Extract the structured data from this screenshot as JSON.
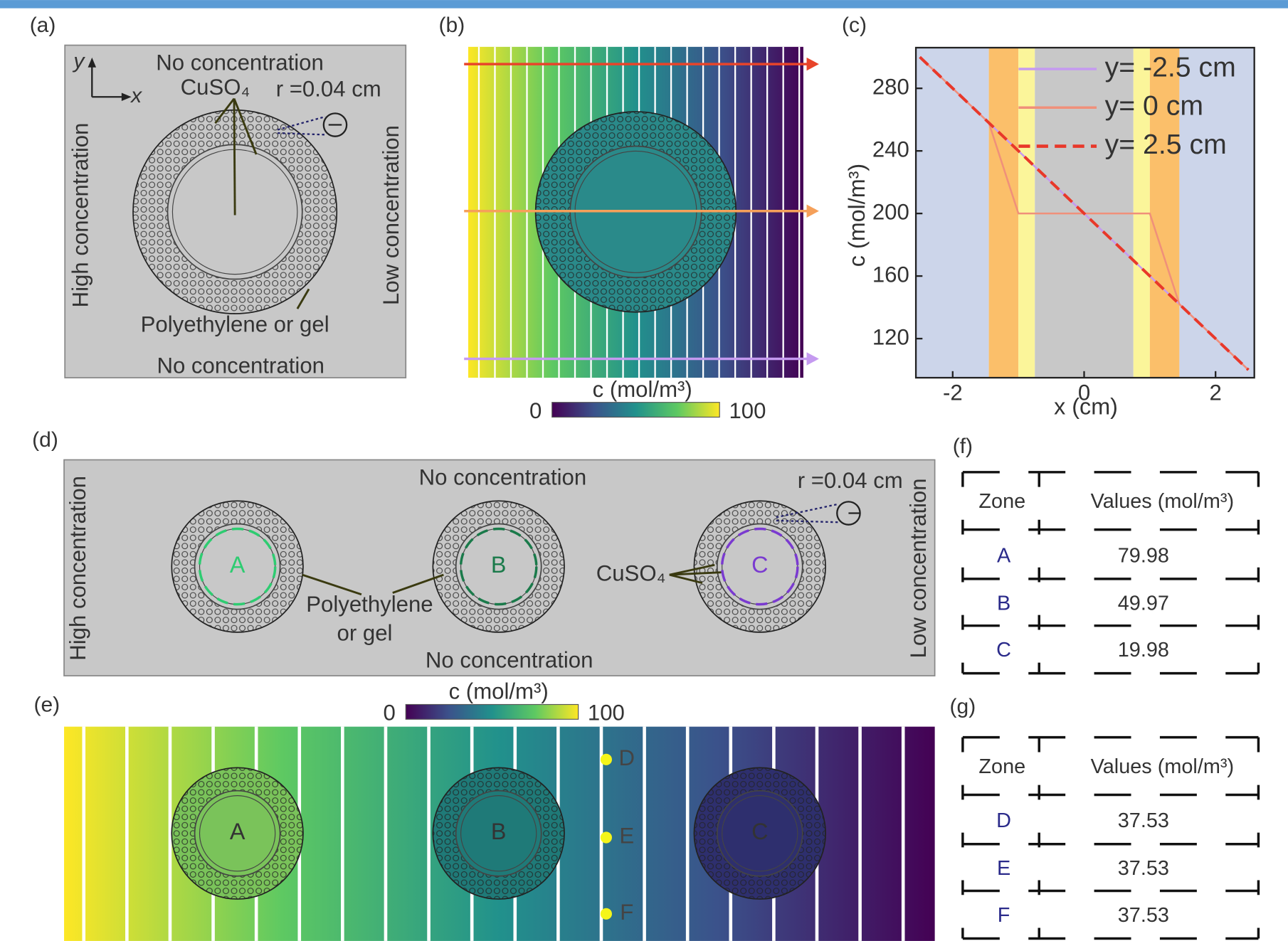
{
  "panel_labels": [
    "(a)",
    "(b)",
    "(c)",
    "(d)",
    "(e)",
    "(f)",
    "(g)"
  ],
  "panel_a": {
    "axis_y": "y",
    "axis_x": "x",
    "top": "No concentration",
    "solute": "CuSO₄",
    "radius": "r =0.04 cm",
    "left": "High concentration",
    "right": "Low concentration",
    "shell": "Polyethylene or gel",
    "bottom": "No concentration"
  },
  "panel_b": {
    "colorbar": {
      "label": "c (mol/m³)",
      "ticks": [
        0,
        100
      ]
    }
  },
  "chart_data": {
    "type": "line",
    "x_label": "x (cm)",
    "y_label": "c (mol/m³)",
    "xlim": [
      -2.56,
      2.59
    ],
    "ylim": [
      95,
      306
    ],
    "xticks": [
      -2,
      0,
      2
    ],
    "yticks": [
      120,
      160,
      200,
      240,
      280
    ],
    "grid": false,
    "regions": [
      {
        "x": [
          -2.56,
          -1.45
        ],
        "color": "#ccd5ea"
      },
      {
        "x": [
          -1.45,
          -1
        ],
        "color": "#fbbf6a"
      },
      {
        "x": [
          -1,
          -0.75
        ],
        "color": "#fbf59a"
      },
      {
        "x": [
          -0.75,
          0.75
        ],
        "color": "#c8c8c8"
      },
      {
        "x": [
          0.75,
          1
        ],
        "color": "#fbf59a"
      },
      {
        "x": [
          1,
          1.45
        ],
        "color": "#fbbf6a"
      },
      {
        "x": [
          1.45,
          2.59
        ],
        "color": "#ccd5ea"
      }
    ],
    "series": [
      {
        "name": "y= -2.5 cm",
        "color": "#c59af0",
        "dashed": false,
        "x": [
          -2.5,
          2.5
        ],
        "values": [
          300,
          100
        ]
      },
      {
        "name": "y= 0 cm",
        "color": "#f0907a",
        "dashed": false,
        "x": [
          -2.5,
          -1.45,
          -1,
          1,
          1.45,
          2.5
        ],
        "values": [
          300,
          258,
          200,
          200,
          142,
          100
        ]
      },
      {
        "name": "y= 2.5 cm",
        "color": "#e8382a",
        "dashed": true,
        "x": [
          -2.5,
          2.5
        ],
        "values": [
          300,
          100
        ]
      }
    ]
  },
  "panel_d": {
    "top": "No concentration",
    "radius": "r =0.04 cm",
    "left": "High concentration",
    "right": "Low concentration",
    "shell": [
      "Polyethylene",
      "or gel"
    ],
    "solute": "CuSO₄",
    "bottom": "No concentration",
    "zones": [
      "A",
      "B",
      "C"
    ]
  },
  "panel_e": {
    "colorbar": {
      "label": "c (mol/m³)",
      "ticks": [
        0,
        100
      ]
    },
    "zones": [
      "A",
      "B",
      "C"
    ],
    "points": [
      "D",
      "E",
      "F"
    ]
  },
  "tables": [
    {
      "header": [
        "Zone",
        "Values (mol/m³)"
      ],
      "rows": [
        [
          "A",
          79.98
        ],
        [
          "B",
          49.97
        ],
        [
          "C",
          19.98
        ]
      ]
    },
    {
      "header": [
        "Zone",
        "Values (mol/m³)"
      ],
      "rows": [
        [
          "D",
          37.53
        ],
        [
          "E",
          37.53
        ],
        [
          "F",
          37.53
        ]
      ]
    }
  ]
}
